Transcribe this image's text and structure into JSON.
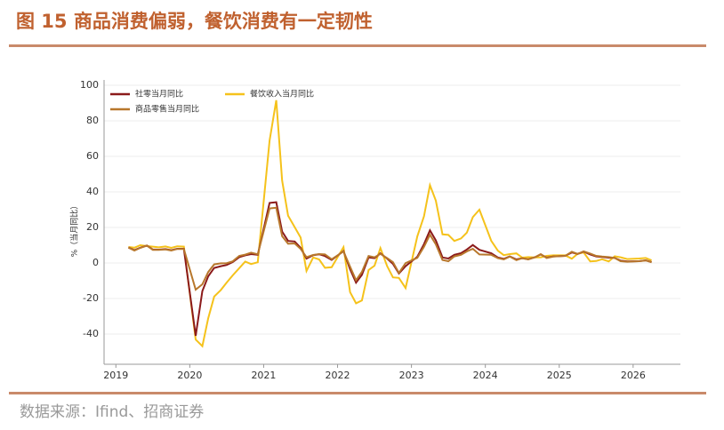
{
  "title": "图 15 商品消费偏弱，餐饮消费有一定韧性",
  "source": "数据来源：Ifind、招商证券",
  "chart_data": {
    "type": "line",
    "y_label": "%（当月同比）",
    "xlim": [
      2018.84,
      2026.64
    ],
    "xticks": [
      2019,
      2020,
      2021,
      2022,
      2023,
      2024,
      2025,
      2026
    ],
    "ylim": [
      -57,
      103
    ],
    "yticks": [
      -40,
      -20,
      0,
      20,
      40,
      60,
      80,
      100
    ],
    "grid": true,
    "legend": "upper left",
    "x": [
      2019.17,
      2019.25,
      2019.33,
      2019.42,
      2019.5,
      2019.58,
      2019.67,
      2019.75,
      2019.83,
      2019.92,
      2020.08,
      2020.17,
      2020.25,
      2020.33,
      2020.42,
      2020.5,
      2020.58,
      2020.67,
      2020.75,
      2020.83,
      2020.92,
      2021.08,
      2021.17,
      2021.25,
      2021.33,
      2021.42,
      2021.5,
      2021.58,
      2021.67,
      2021.75,
      2021.83,
      2021.92,
      2022.08,
      2022.17,
      2022.25,
      2022.33,
      2022.42,
      2022.5,
      2022.58,
      2022.67,
      2022.75,
      2022.83,
      2022.92,
      2023.08,
      2023.17,
      2023.25,
      2023.33,
      2023.42,
      2023.5,
      2023.58,
      2023.67,
      2023.75,
      2023.83,
      2023.92,
      2024.08,
      2024.17,
      2024.25,
      2024.33,
      2024.42,
      2024.5,
      2024.58,
      2024.67,
      2024.75,
      2024.83,
      2024.92,
      2025.08,
      2025.17,
      2025.25,
      2025.33,
      2025.42,
      2025.5,
      2025.58,
      2025.67,
      2025.75,
      2025.83,
      2025.92,
      2026.08,
      2026.17,
      2026.25
    ],
    "series": [
      {
        "name": "社零当月同比",
        "color": "#8b1a1a",
        "values": [
          8.7,
          7.2,
          8.6,
          9.8,
          7.6,
          7.5,
          7.8,
          7.2,
          8.0,
          8.0,
          -41,
          -15.8,
          -7.5,
          -2.8,
          -1.8,
          -1.1,
          0.5,
          3.3,
          4.3,
          5.0,
          4.6,
          33.8,
          34.2,
          17.7,
          12.4,
          12.1,
          8.5,
          2.5,
          4.4,
          4.9,
          3.9,
          1.7,
          6.7,
          -3.5,
          -11.1,
          -6.7,
          3.1,
          2.7,
          5.4,
          2.5,
          -0.5,
          -5.9,
          -1.8,
          3.5,
          10.6,
          18.4,
          12.7,
          3.1,
          2.5,
          4.6,
          5.5,
          7.6,
          10.1,
          7.4,
          5.5,
          3.1,
          2.3,
          3.7,
          2.0,
          2.7,
          2.1,
          3.2,
          4.8,
          3.0,
          3.7,
          4.0,
          5.9,
          5.1,
          6.4,
          4.8,
          3.7,
          3.4,
          3.0,
          2.9,
          1.3,
          0.9,
          1.0,
          1.5,
          0.5
        ]
      },
      {
        "name": "餐饮收入当月同比",
        "color": "#f5c21b",
        "values": [
          9.0,
          8.6,
          10.0,
          9.5,
          9.2,
          8.8,
          9.3,
          8.5,
          9.4,
          9.2,
          -43.1,
          -46.8,
          -31.1,
          -18.9,
          -15.2,
          -11.0,
          -7.0,
          -2.9,
          0.8,
          -0.6,
          0.4,
          68.9,
          91.6,
          46.4,
          26.6,
          20.2,
          14.3,
          -4.5,
          3.1,
          2.0,
          -2.7,
          -2.4,
          8.9,
          -16.4,
          -22.7,
          -21.1,
          -4.0,
          -1.5,
          8.4,
          -1.7,
          -8.1,
          -8.4,
          -14.1,
          15.0,
          26.3,
          43.8,
          35.1,
          16.1,
          15.8,
          12.4,
          13.8,
          17.1,
          25.8,
          30.0,
          12.5,
          6.9,
          4.4,
          5.0,
          5.4,
          3.0,
          3.3,
          3.1,
          3.2,
          4.0,
          4.3,
          4.3,
          2.4,
          5.2,
          5.9,
          0.9,
          1.1,
          2.1,
          0.9,
          3.8,
          3.2,
          2.2,
          2.5,
          2.8,
          1.5
        ]
      },
      {
        "name": "商品零售当月同比",
        "color": "#b8772c",
        "values": [
          8.7,
          7.0,
          8.5,
          9.8,
          7.4,
          7.4,
          7.6,
          7.0,
          7.9,
          7.9,
          -15.0,
          -12.0,
          -5.1,
          -0.8,
          -0.2,
          -0.1,
          0.9,
          4.0,
          4.7,
          5.8,
          4.9,
          30.7,
          31.1,
          15.1,
          10.8,
          11.0,
          7.9,
          3.3,
          4.5,
          5.0,
          4.8,
          2.1,
          6.5,
          -2.1,
          -9.7,
          -5.0,
          3.9,
          3.2,
          5.1,
          2.8,
          0.5,
          -5.6,
          -0.1,
          2.9,
          9.1,
          15.9,
          10.5,
          1.7,
          1.0,
          3.7,
          4.6,
          6.5,
          8.0,
          4.8,
          4.6,
          2.7,
          2.0,
          3.6,
          1.6,
          2.7,
          2.0,
          3.2,
          5.0,
          2.8,
          3.6,
          4.0,
          6.3,
          5.1,
          6.5,
          5.3,
          4.0,
          3.6,
          3.3,
          2.8,
          1.0,
          0.7,
          1.0,
          1.4,
          0.4
        ]
      }
    ]
  }
}
